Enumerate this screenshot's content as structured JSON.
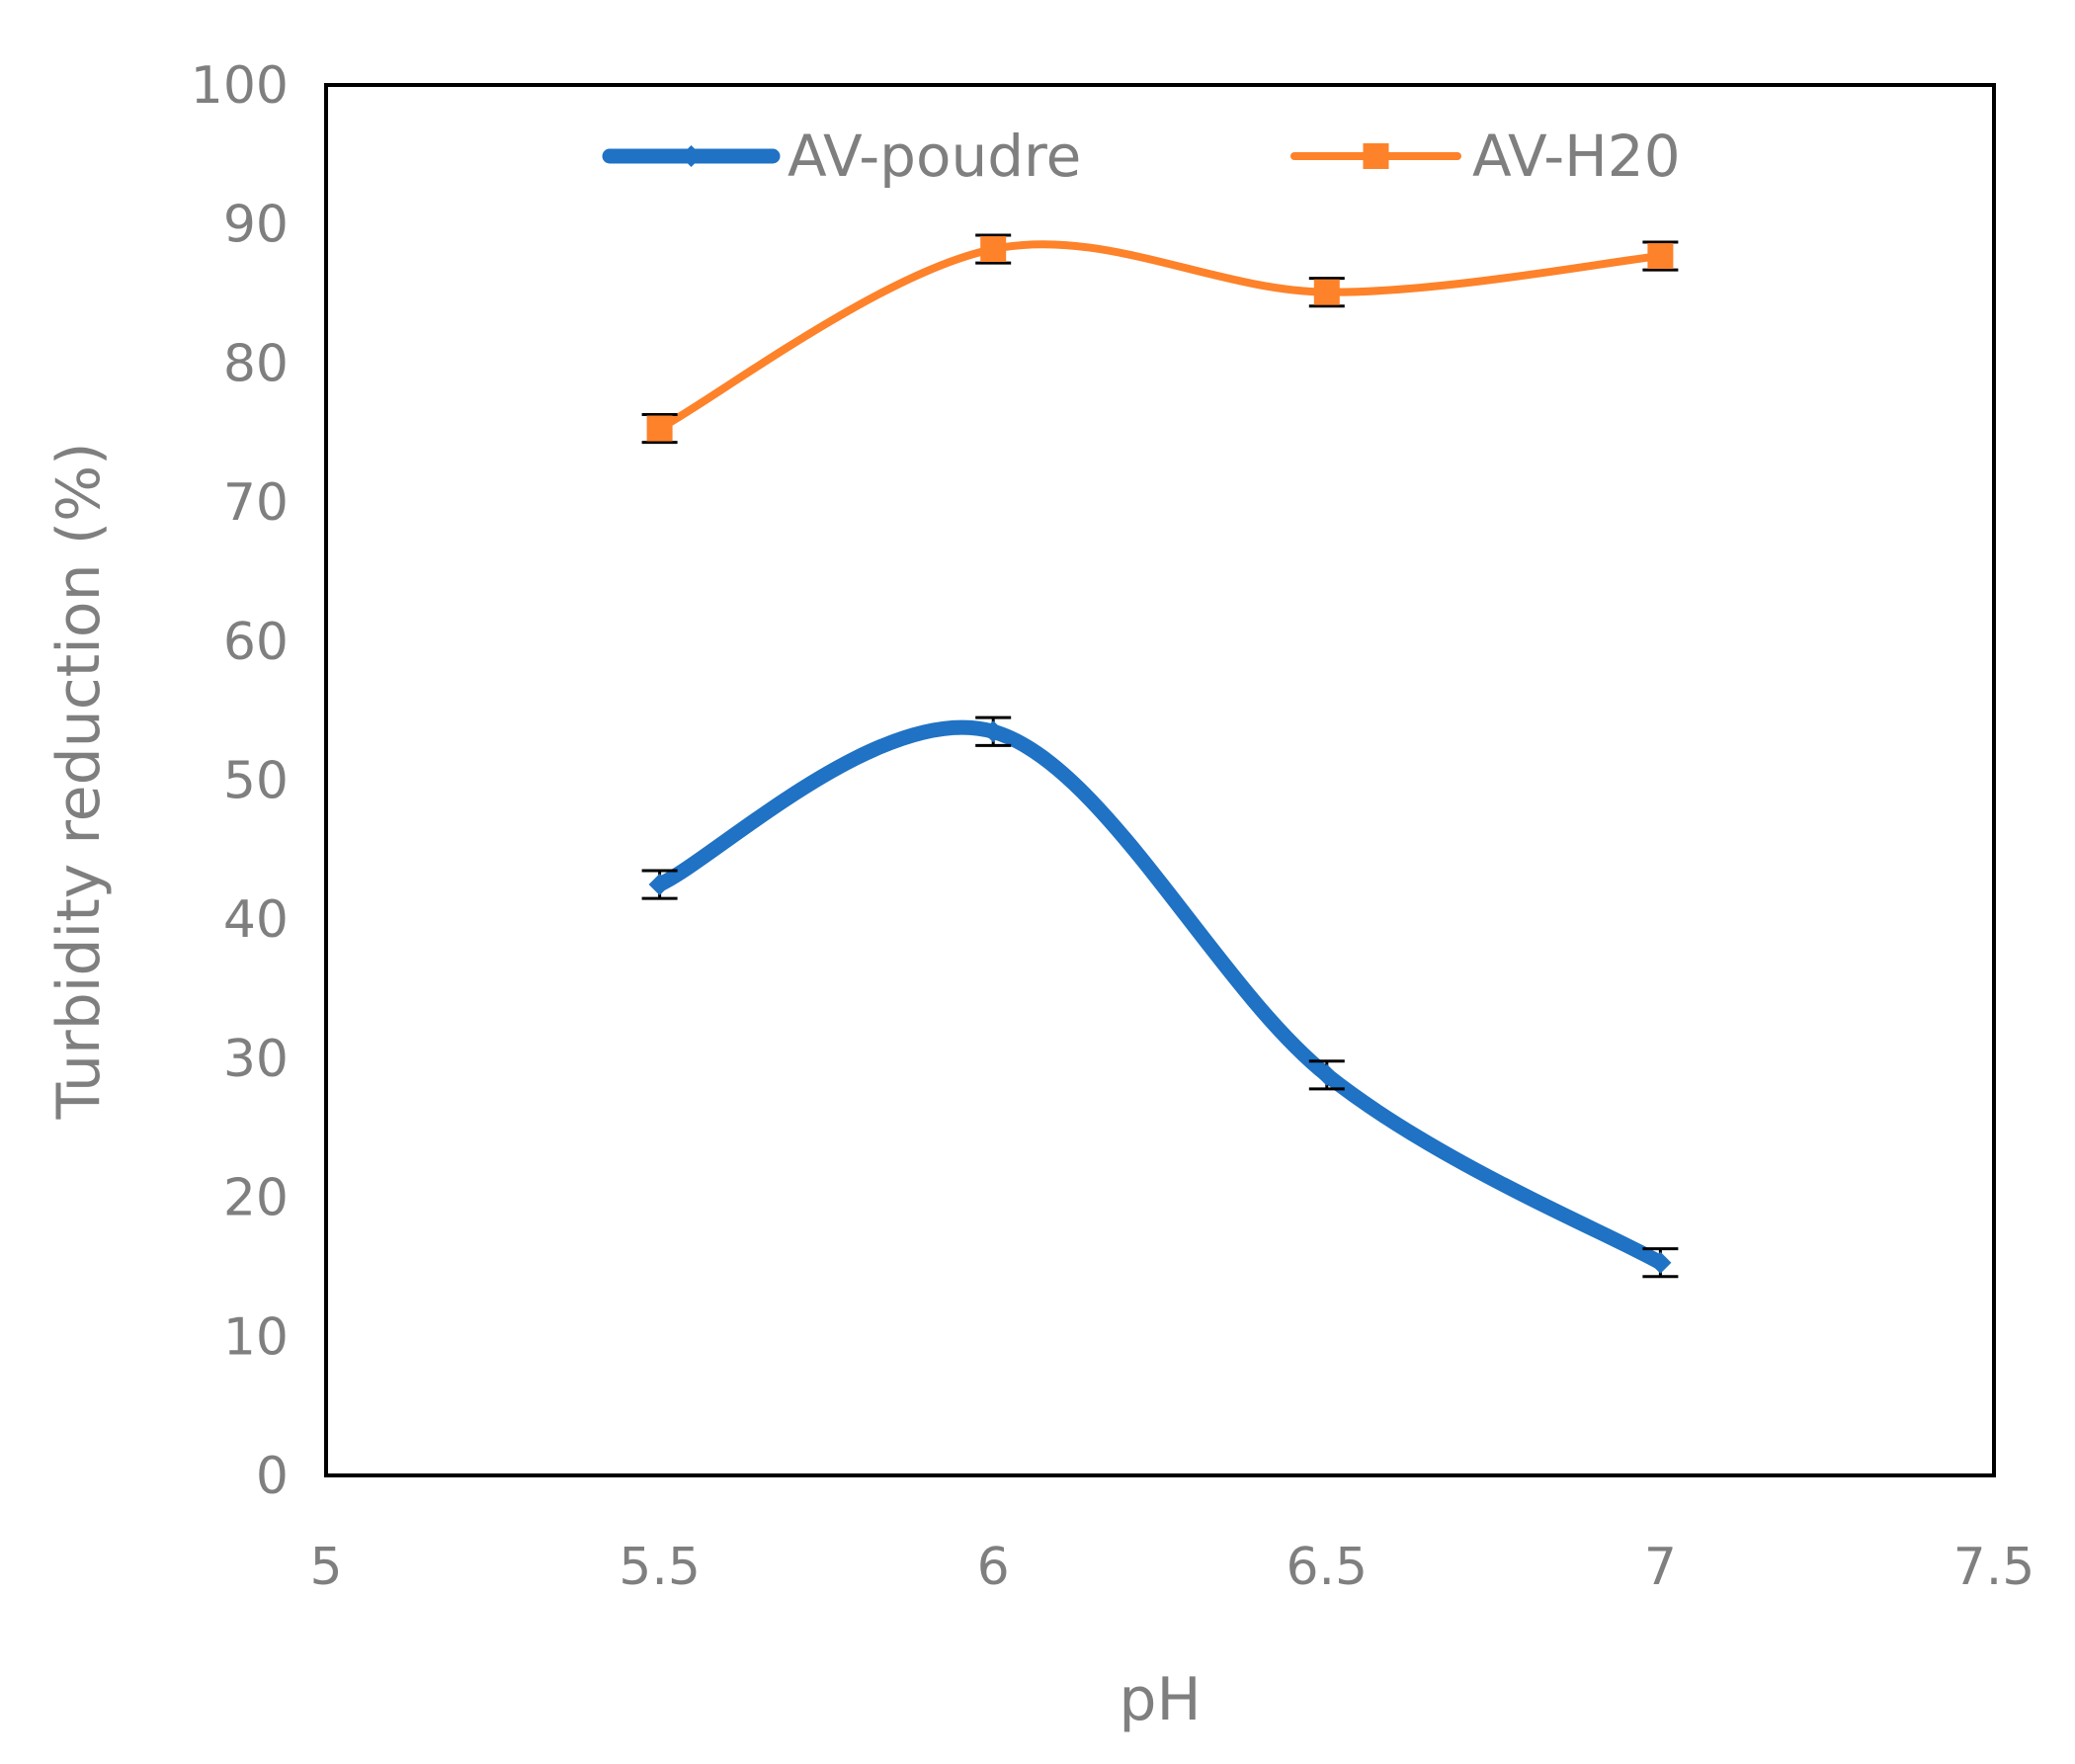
{
  "chart_data": {
    "type": "line",
    "smooth": true,
    "xlabel": "pH",
    "ylabel": "Turbidity reduction  (%)",
    "xlim": [
      5,
      7.5
    ],
    "ylim": [
      0,
      100
    ],
    "xticks": [
      "5",
      "5.5",
      "6",
      "6.5",
      "7",
      "7.5"
    ],
    "yticks": [
      "0",
      "10",
      "20",
      "30",
      "40",
      "50",
      "60",
      "70",
      "80",
      "90",
      "100"
    ],
    "grid": false,
    "legend_position": "top",
    "series": [
      {
        "name": "AV-poudre",
        "color": "#1f72c4",
        "marker": "diamond",
        "points": [
          {
            "x": 5.5,
            "y": 42.5,
            "err": 1.0
          },
          {
            "x": 6.0,
            "y": 53.5,
            "err": 1.0
          },
          {
            "x": 6.5,
            "y": 28.8,
            "err": 1.0
          },
          {
            "x": 7.0,
            "y": 15.3,
            "err": 1.0
          }
        ]
      },
      {
        "name": "AV-H20",
        "color": "#fd822a",
        "marker": "square",
        "points": [
          {
            "x": 5.5,
            "y": 75.3,
            "err": 1.0
          },
          {
            "x": 6.0,
            "y": 88.2,
            "err": 1.0
          },
          {
            "x": 6.5,
            "y": 85.1,
            "err": 1.0
          },
          {
            "x": 7.0,
            "y": 87.7,
            "err": 1.0
          }
        ]
      }
    ]
  }
}
